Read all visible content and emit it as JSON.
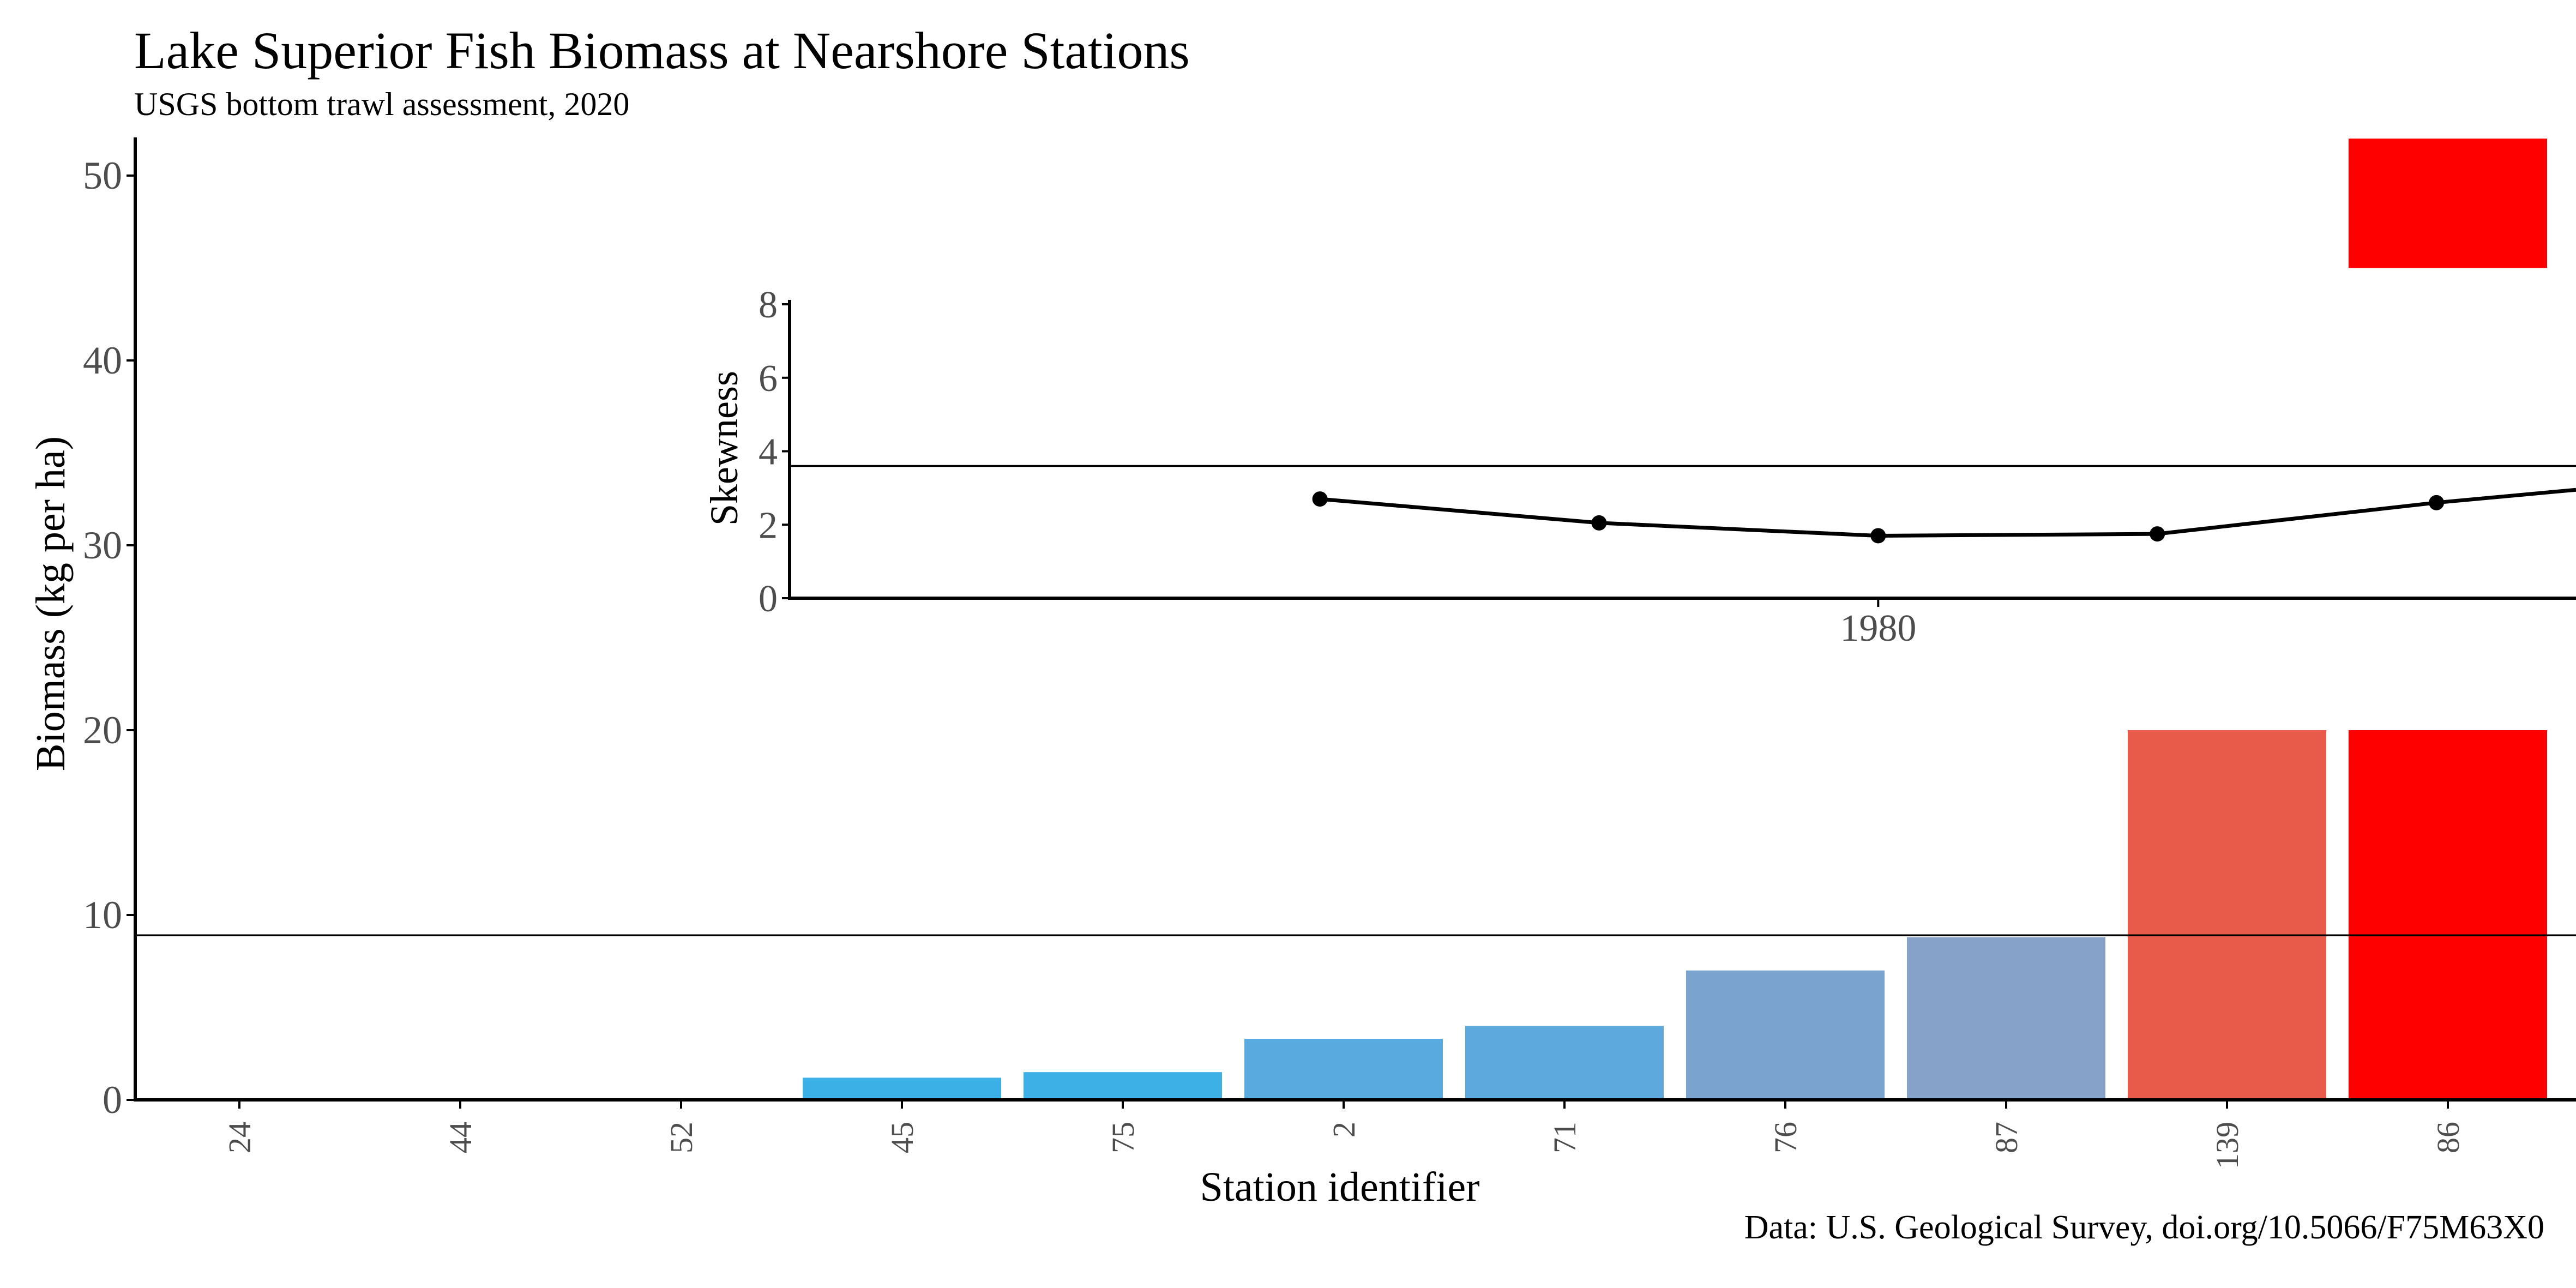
{
  "chart_data": [
    {
      "type": "bar",
      "title": "Lake Superior Fish Biomass at Nearshore Stations",
      "subtitle": "USGS bottom trawl assessment, 2020",
      "caption": "Data: U.S. Geological Survey, doi.org/10.5066/F75M63X0",
      "xlabel": "Station identifier",
      "ylabel": "Biomass (kg per ha)",
      "ylim": [
        0,
        52
      ],
      "yticks": [
        0,
        10,
        20,
        30,
        40,
        50
      ],
      "grid": false,
      "legend": "none",
      "categories": [
        "24",
        "44",
        "52",
        "45",
        "75",
        "2",
        "71",
        "76",
        "87",
        "139",
        "86"
      ],
      "values": [
        0,
        0,
        0,
        1.2,
        1.5,
        3.3,
        4.0,
        7.0,
        8.8,
        20,
        20
      ],
      "colors": [
        "#00AEEF",
        "#00AEEF",
        "#00AEEF",
        "#3BB0E6",
        "#3DB0E5",
        "#59ABDF",
        "#5DA9DD",
        "#7AA4CF",
        "#87A2C9",
        "#E85B4A",
        "#FF0000"
      ],
      "reference_line": 8.9,
      "overflow_bar": {
        "category": "86",
        "from": 45,
        "to": 52,
        "color": "#FF0000"
      }
    },
    {
      "type": "line",
      "ylabel": "Skewness",
      "ylim": [
        0,
        8
      ],
      "yticks": [
        0,
        2,
        4,
        6,
        8
      ],
      "xtick_labels": [
        "1980"
      ],
      "x": [
        1970,
        1975,
        1980,
        1985,
        1990,
        1992.5
      ],
      "y": [
        2.7,
        2.05,
        1.7,
        1.75,
        2.6,
        2.95
      ],
      "reference_line": 3.6,
      "xlim": [
        1960.5,
        1992.5
      ]
    }
  ],
  "styles": {
    "axis_color": "#000000",
    "tick_label_color": "#4D4D4D",
    "line_color": "#000000"
  }
}
